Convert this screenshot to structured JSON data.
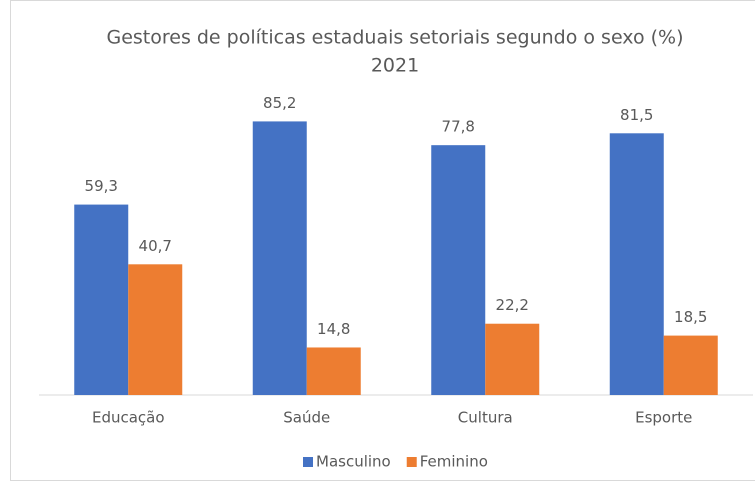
{
  "chart_data": {
    "type": "bar",
    "title": "Gestores de políticas estaduais setoriais segundo o sexo (%)",
    "subtitle": "2021",
    "categories": [
      "Educação",
      "Saúde",
      "Cultura",
      "Esporte"
    ],
    "series": [
      {
        "name": "Masculino",
        "color": "#4472c4",
        "values": [
          59.3,
          85.2,
          77.8,
          81.5
        ],
        "value_labels": [
          "59,3",
          "85,2",
          "77,8",
          "81,5"
        ]
      },
      {
        "name": "Feminino",
        "color": "#ed7d31",
        "values": [
          40.7,
          14.8,
          22.2,
          18.5
        ],
        "value_labels": [
          "40,7",
          "14,8",
          "22,2",
          "18,5"
        ]
      }
    ],
    "ylim": [
      0,
      90
    ],
    "legend": "bottom"
  }
}
